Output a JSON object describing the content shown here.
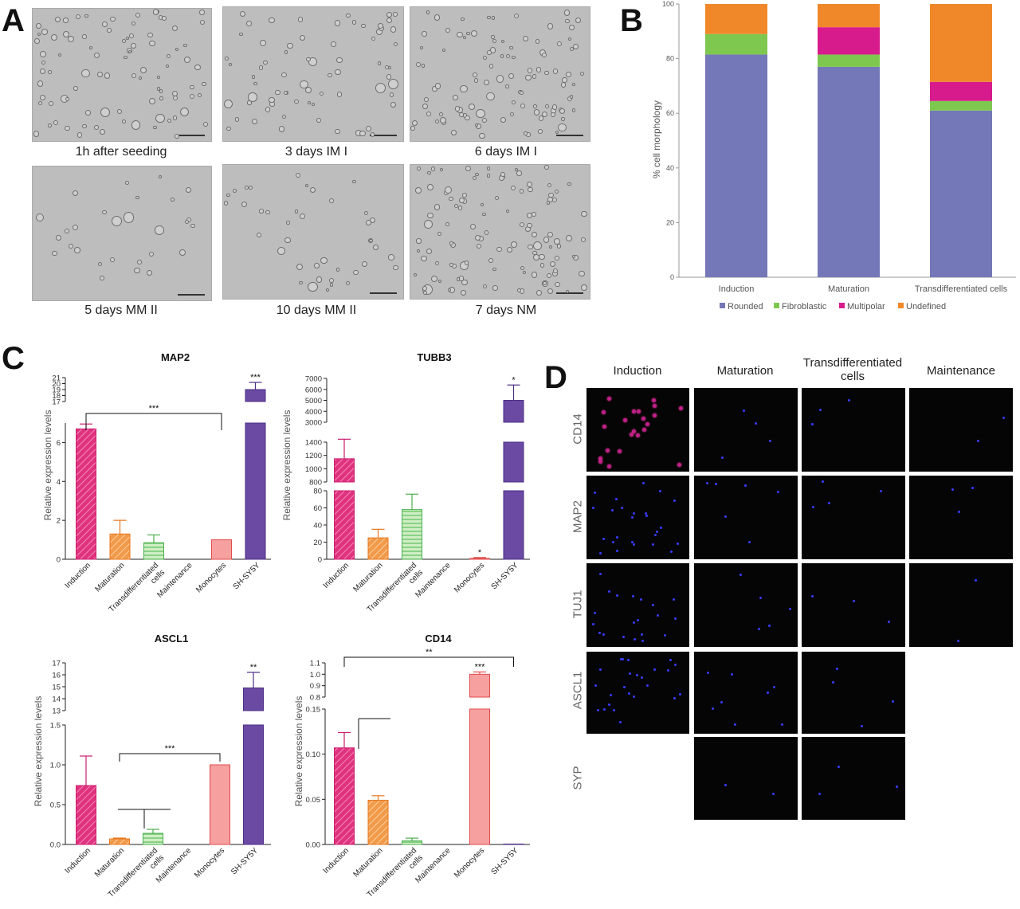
{
  "panels": {
    "a": "A",
    "b": "B",
    "c": "C",
    "d": "D"
  },
  "panel_a": {
    "captions": [
      "1h after seeding",
      "3 days IM I",
      "6 days IM I",
      "5 days MM II",
      "10 days MM II",
      "7 days NM"
    ]
  },
  "chart_data": [
    {
      "id": "B",
      "type": "bar",
      "stacked": true,
      "categories": [
        "Induction",
        "Maturation",
        "Transdifferentiated cells"
      ],
      "series": [
        {
          "name": "Rounded",
          "color": "#7478b8",
          "values": [
            81.5,
            77,
            61
          ]
        },
        {
          "name": "Fibroblastic",
          "color": "#7ec850",
          "values": [
            7.5,
            4.5,
            3.5
          ]
        },
        {
          "name": "Multipolar",
          "color": "#d81b8c",
          "values": [
            0,
            10,
            7
          ]
        },
        {
          "name": "Undefined",
          "color": "#f0882a",
          "values": [
            11,
            8.5,
            28.5
          ]
        }
      ],
      "ylabel": "% cell morphology",
      "ylim": [
        0,
        100
      ],
      "yticks": [
        "0",
        "20",
        "40",
        "60",
        "80",
        "100"
      ],
      "legend": "bottom"
    },
    {
      "id": "MAP2",
      "type": "bar",
      "title": "MAP2",
      "ylabel": "Relative expression levels",
      "categories": [
        "Induction",
        "Maturation",
        "Transdifferentiated cells",
        "Maintenance",
        "Monocytes",
        "SH-SY5Y"
      ],
      "values": [
        6.7,
        1.3,
        0.85,
        0,
        1.0,
        19
      ],
      "errors": [
        0.25,
        0.7,
        0.4,
        0,
        0,
        1.2
      ],
      "lower_ticks": [
        "0",
        "2",
        "4",
        "6"
      ],
      "lower_ylim": [
        0,
        7
      ],
      "upper_ticks": [
        "17",
        "18",
        "19",
        "20",
        "21"
      ],
      "upper_ylim": [
        17,
        21
      ],
      "significance": [
        {
          "label": "***",
          "kind": "bracket",
          "from": "Induction",
          "to": "Monocytes"
        },
        {
          "label": "***",
          "kind": "bar",
          "at": "SH-SY5Y"
        }
      ]
    },
    {
      "id": "TUBB3",
      "type": "bar",
      "title": "TUBB3",
      "ylabel": "Relative expression levels",
      "categories": [
        "Induction",
        "Maturation",
        "Transdifferentiated cells",
        "Maintenance",
        "Monocytes",
        "SH-SY5Y"
      ],
      "values": [
        1150,
        25,
        58,
        0,
        1,
        5000
      ],
      "errors": [
        300,
        10,
        18,
        0,
        1,
        1400
      ],
      "lower_ticks": [
        "0",
        "20",
        "40",
        "60",
        "80"
      ],
      "lower_ylim": [
        0,
        80
      ],
      "upper_ticks": [
        "800",
        "1000",
        "1200",
        "1400",
        "3000",
        "4000",
        "5000",
        "6000",
        "7000"
      ],
      "significance": [
        {
          "label": "*",
          "kind": "bar",
          "at": "Monocytes"
        },
        {
          "label": "*",
          "kind": "bar",
          "at": "SH-SY5Y"
        }
      ]
    },
    {
      "id": "ASCL1",
      "type": "bar",
      "title": "ASCL1",
      "ylabel": "Relative expression levels",
      "categories": [
        "Induction",
        "Maturation",
        "Transdifferentiated cells",
        "Maintenance",
        "Monocytes",
        "SH-SY5Y"
      ],
      "values": [
        0.74,
        0.07,
        0.14,
        0,
        1.0,
        14.9
      ],
      "errors": [
        0.37,
        0.01,
        0.05,
        0,
        0,
        1.3
      ],
      "lower_ticks": [
        "0.0",
        "0.5",
        "1.0",
        "1.5"
      ],
      "lower_ylim": [
        0,
        1.5
      ],
      "upper_ticks": [
        "13",
        "14",
        "15",
        "16",
        "17"
      ],
      "upper_ylim": [
        13,
        17
      ],
      "significance": [
        {
          "label": "***",
          "kind": "bracket",
          "from": "Maturation",
          "to": "Monocytes"
        },
        {
          "label": "**",
          "kind": "bar",
          "at": "SH-SY5Y"
        }
      ]
    },
    {
      "id": "CD14",
      "type": "bar",
      "title": "CD14",
      "ylabel": "Relative expression levels",
      "categories": [
        "Induction",
        "Maturation",
        "Transdifferentiated cells",
        "Maintenance",
        "Monocytes",
        "SH-SY5Y"
      ],
      "values": [
        0.107,
        0.049,
        0.004,
        0,
        1.0,
        0.0005
      ],
      "errors": [
        0.017,
        0.005,
        0.003,
        0,
        0.02,
        0
      ],
      "lower_ticks": [
        "0.00",
        "0.05",
        "0.10",
        "0.15"
      ],
      "lower_ylim": [
        0,
        0.15
      ],
      "upper_ticks": [
        "0.8",
        "0.9",
        "1.0",
        "1.1"
      ],
      "upper_ylim": [
        0.8,
        1.1
      ],
      "significance": [
        {
          "label": "**",
          "kind": "bracket",
          "from": "Induction",
          "to": "SH-SY5Y"
        },
        {
          "label": "***",
          "kind": "bar",
          "at": "Monocytes"
        }
      ]
    }
  ],
  "panel_d": {
    "columns": [
      "Induction",
      "Maturation",
      "Transdifferentiated cells",
      "Maintenance"
    ],
    "rows": [
      "CD14",
      "MAP2",
      "TUJ1",
      "ASCL1",
      "SYP"
    ]
  }
}
